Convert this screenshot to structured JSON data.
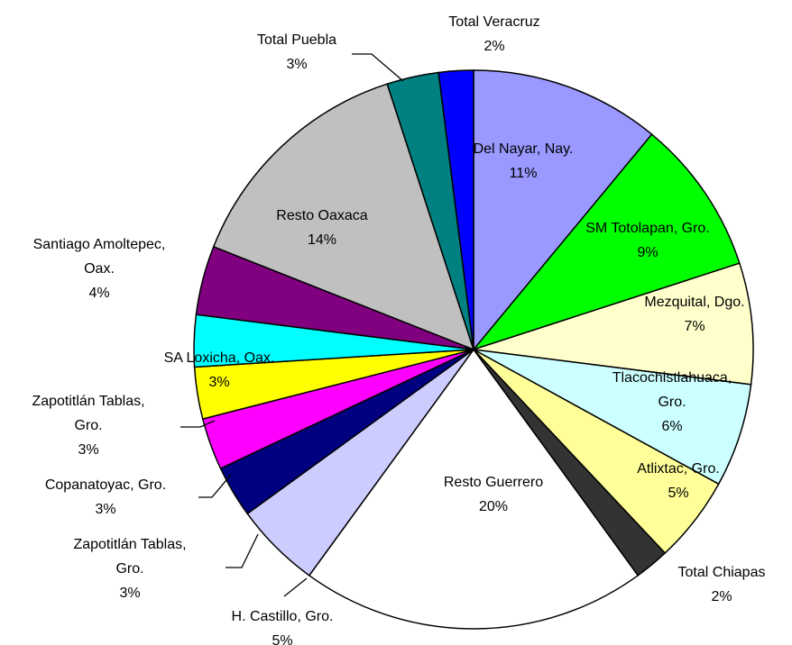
{
  "chart_data": {
    "type": "pie",
    "categories": [
      "Del Nayar, Nay.",
      "SM Totolapan, Gro.",
      "Mezquital, Dgo.",
      "Tlacochistlahuaca, Gro.",
      "Atlixtac, Gro.",
      "Total Chiapas",
      "Resto Guerrero",
      "H. Castillo, Gro.",
      "Zapotitlán Tablas, Gro.",
      "Copanatoyac, Gro.",
      "Zapotitlán Tablas, Gro.",
      "SA Loxicha, Oax.",
      "Santiago Amoltepec, Oax.",
      "Resto Oaxaca",
      "Total Puebla",
      "Total Veracruz"
    ],
    "values": [
      11,
      9,
      7,
      6,
      5,
      2,
      20,
      5,
      3,
      3,
      3,
      3,
      4,
      14,
      3,
      2
    ],
    "value_labels": [
      "11%",
      "9%",
      "7%",
      "6%",
      "5%",
      "2%",
      "20%",
      "5%",
      "3%",
      "3%",
      "3%",
      "3%",
      "4%",
      "14%",
      "3%",
      "2%"
    ],
    "colors": [
      "#9999ff",
      "#00ff00",
      "#ffffcc",
      "#ccffff",
      "#ffff99",
      "#333333",
      "#ffffff",
      "#ccccff",
      "#000080",
      "#ff00ff",
      "#ffff00",
      "#00ffff",
      "#800080",
      "#c0c0c0",
      "#008080",
      "#0000ff"
    ]
  }
}
